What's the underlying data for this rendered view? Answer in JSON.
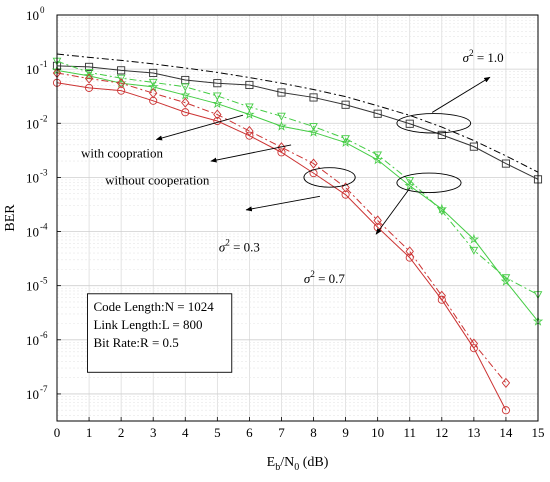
{
  "chart_data": {
    "type": "line",
    "xlabel": {
      "main": "E",
      "sub1": "b",
      "mid": "/N",
      "sub2": "0",
      "unit": " (dB)"
    },
    "ylabel": "BER",
    "xlim": [
      0,
      15
    ],
    "ylim_log10": [
      -7.5,
      0
    ],
    "yscale": "log",
    "grid": true,
    "x_ticks": [
      0,
      1,
      2,
      3,
      4,
      5,
      6,
      7,
      8,
      9,
      10,
      11,
      12,
      13,
      14,
      15
    ],
    "y_ticks": [
      {
        "exp": 0,
        "base": "10",
        "sup": "0"
      },
      {
        "exp": -1,
        "base": "10",
        "sup": "-1"
      },
      {
        "exp": -2,
        "base": "10",
        "sup": "-2"
      },
      {
        "exp": -3,
        "base": "10",
        "sup": "-3"
      },
      {
        "exp": -4,
        "base": "10",
        "sup": "-4"
      },
      {
        "exp": -5,
        "base": "10",
        "sup": "-5"
      },
      {
        "exp": -6,
        "base": "10",
        "sup": "-6"
      },
      {
        "exp": -7,
        "base": "10",
        "sup": "-7"
      }
    ],
    "series": [
      {
        "style": "dashdot",
        "color": "#000000",
        "marker": "none",
        "x": [
          0,
          1,
          2,
          3,
          4,
          5,
          6,
          7,
          8,
          9,
          10,
          11,
          12,
          13,
          14,
          15
        ],
        "y": [
          0.19,
          0.165,
          0.145,
          0.125,
          0.105,
          0.087,
          0.07,
          0.055,
          0.042,
          0.031,
          0.021,
          0.014,
          0.0085,
          0.0048,
          0.0025,
          0.00125
        ]
      },
      {
        "style": "solid",
        "color": "#333333",
        "marker": "square",
        "x": [
          0,
          1,
          2,
          3,
          4,
          5,
          6,
          7,
          8,
          9,
          10,
          11,
          12,
          13,
          14,
          15
        ],
        "y": [
          0.115,
          0.11,
          0.095,
          0.085,
          0.063,
          0.055,
          0.051,
          0.037,
          0.03,
          0.022,
          0.015,
          0.0098,
          0.0061,
          0.0037,
          0.0018,
          0.00092
        ]
      },
      {
        "style": "dashdot",
        "color": "#44cc44",
        "marker": "triangle-down",
        "x": [
          0,
          1,
          2,
          3,
          4,
          5,
          6,
          7,
          8,
          9,
          10,
          11,
          12,
          13,
          14,
          15
        ],
        "y": [
          0.14,
          0.087,
          0.068,
          0.057,
          0.047,
          0.032,
          0.02,
          0.0135,
          0.0087,
          0.0052,
          0.0026,
          0.00088,
          0.00024,
          4.5e-05,
          1.4e-05,
          6.8e-06
        ]
      },
      {
        "style": "solid",
        "color": "#44cc44",
        "marker": "star",
        "x": [
          0,
          1,
          2,
          3,
          4,
          5,
          6,
          7,
          8,
          9,
          10,
          11,
          12,
          13,
          14,
          15
        ],
        "y": [
          0.095,
          0.075,
          0.055,
          0.047,
          0.033,
          0.023,
          0.0145,
          0.0088,
          0.0068,
          0.0044,
          0.0021,
          0.0007,
          0.00026,
          7.2e-05,
          1.2e-05,
          2.2e-06
        ]
      },
      {
        "style": "dashdot",
        "color": "#cc3333",
        "marker": "diamond",
        "x": [
          0,
          1,
          2,
          3,
          4,
          5,
          6,
          7,
          8,
          9,
          10,
          11,
          12,
          13,
          14
        ],
        "y": [
          0.085,
          0.067,
          0.055,
          0.036,
          0.024,
          0.0145,
          0.0072,
          0.0036,
          0.0018,
          0.00065,
          0.00016,
          4.3e-05,
          6.5e-06,
          8.5e-07,
          1.6e-07
        ]
      },
      {
        "style": "solid",
        "color": "#cc3333",
        "marker": "circle",
        "x": [
          0,
          1,
          2,
          3,
          4,
          5,
          6,
          7,
          8,
          9,
          10,
          11,
          12,
          13,
          14
        ],
        "y": [
          0.056,
          0.045,
          0.04,
          0.026,
          0.016,
          0.011,
          0.0059,
          0.0029,
          0.0012,
          0.00048,
          0.00012,
          3.3e-05,
          5.5e-06,
          7e-07,
          5e-08
        ]
      }
    ],
    "ellipses": [
      {
        "cx": 11.75,
        "cy_log": -2.0,
        "rx": 1.15,
        "ry_log": 0.18
      },
      {
        "cx": 8.5,
        "cy_log": -3.0,
        "rx": 0.8,
        "ry_log": 0.18
      },
      {
        "cx": 11.6,
        "cy_log": -3.1,
        "rx": 1.0,
        "ry_log": 0.18
      }
    ],
    "arrows": [
      {
        "from": [
          5.8,
          -1.85
        ],
        "to": [
          3.1,
          -2.3
        ]
      },
      {
        "from": [
          7.3,
          -2.4
        ],
        "to": [
          4.8,
          -2.7
        ]
      },
      {
        "from": [
          8.2,
          -3.35
        ],
        "to": [
          5.9,
          -3.6
        ]
      },
      {
        "from": [
          11.0,
          -3.2
        ],
        "to": [
          9.95,
          -4.05
        ]
      },
      {
        "from": [
          11.7,
          -1.8
        ],
        "to": [
          13.5,
          -1.15
        ]
      }
    ],
    "annotations": [
      {
        "id": "sigma10",
        "base": "σ",
        "sup": "2",
        "rest": " = 1.0",
        "x": 12.65,
        "y_log": -0.87
      },
      {
        "id": "sigma03",
        "base": "σ",
        "sup": "2",
        "rest": " = 0.3",
        "x": 5.05,
        "y_log": -4.37
      },
      {
        "id": "sigma07",
        "base": "σ",
        "sup": "2",
        "rest": " = 0.7",
        "x": 7.7,
        "y_log": -4.95
      },
      {
        "id": "with",
        "text": "with coopration",
        "x": 0.75,
        "y_log": -2.63
      },
      {
        "id": "without",
        "text": "without cooperation",
        "x": 1.5,
        "y_log": -3.13
      }
    ],
    "info_box": {
      "lines": [
        "Code Length:N = 1024",
        "Link Length:L = 800",
        "Bit Rate:R = 0.5"
      ],
      "x0": 0.95,
      "x1": 5.45,
      "y_top_log": -5.15,
      "y_bot_log": -6.6
    }
  }
}
